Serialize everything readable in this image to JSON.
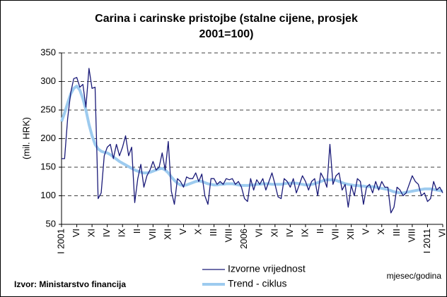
{
  "chart_data": {
    "type": "line",
    "title": "Carina i carinske pristojbe (stalne cijene, prosjek 2001=100)",
    "y_label": "(mil. HRK)",
    "x_label": "mjesec/godina",
    "source": "Izvor: Ministarstvo financija",
    "categories": [
      "I 2001",
      null,
      null,
      null,
      null,
      "VI",
      null,
      null,
      null,
      null,
      "XI",
      null,
      null,
      null,
      null,
      "IV",
      null,
      null,
      null,
      null,
      "IX",
      null,
      null,
      null,
      null,
      "II",
      null,
      null,
      null,
      null,
      "VII",
      null,
      null,
      null,
      null,
      "XII",
      null,
      null,
      null,
      null,
      "V",
      null,
      null,
      null,
      null,
      "X",
      null,
      null,
      null,
      null,
      "III",
      null,
      null,
      null,
      null,
      "VIII",
      null,
      null,
      null,
      null,
      "2006",
      null,
      null,
      null,
      null,
      "VI",
      null,
      null,
      null,
      null,
      "XI",
      null,
      null,
      null,
      null,
      "IV",
      null,
      null,
      null,
      null,
      "IX",
      null,
      null,
      null,
      null,
      "II",
      null,
      null,
      null,
      null,
      "VII",
      null,
      null,
      null,
      null,
      "XII",
      null,
      null,
      null,
      null,
      "V",
      null,
      null,
      null,
      null,
      "X",
      null,
      null,
      null,
      null,
      "III",
      null,
      null,
      null,
      null,
      "VIII",
      null,
      null,
      null,
      null,
      "I 2011",
      null,
      null,
      null,
      null,
      "VI"
    ],
    "series": [
      {
        "name": "Izvorne vrijednost",
        "color": "#1a1a78",
        "width": 1.3,
        "values": [
          165,
          165,
          235,
          280,
          305,
          307,
          290,
          295,
          255,
          323,
          288,
          290,
          95,
          105,
          170,
          185,
          190,
          165,
          190,
          170,
          185,
          205,
          170,
          185,
          88,
          130,
          155,
          115,
          135,
          145,
          160,
          145,
          150,
          175,
          145,
          195,
          108,
          85,
          130,
          125,
          115,
          133,
          130,
          130,
          140,
          125,
          138,
          100,
          85,
          130,
          130,
          120,
          125,
          120,
          130,
          128,
          130,
          120,
          125,
          115,
          95,
          90,
          130,
          110,
          128,
          120,
          130,
          110,
          125,
          140,
          120,
          98,
          95,
          130,
          125,
          115,
          130,
          105,
          120,
          135,
          125,
          110,
          125,
          130,
          100,
          140,
          130,
          115,
          190,
          120,
          135,
          140,
          110,
          120,
          80,
          118,
          100,
          130,
          125,
          85,
          115,
          120,
          105,
          125,
          110,
          125,
          115,
          115,
          70,
          80,
          115,
          110,
          100,
          105,
          120,
          135,
          125,
          120,
          100,
          105,
          90,
          95,
          125,
          110,
          115,
          105
        ]
      },
      {
        "name": "Trend - ciklus",
        "color": "#9dcbef",
        "width": 4,
        "values": [
          230,
          245,
          262,
          278,
          288,
          292,
          285,
          270,
          250,
          225,
          205,
          190,
          182,
          178,
          176,
          175,
          172,
          168,
          164,
          160,
          157,
          154,
          151,
          148,
          145,
          143,
          141,
          140,
          140,
          141,
          143,
          145,
          147,
          148,
          145,
          140,
          133,
          127,
          122,
          119,
          118,
          119,
          121,
          123,
          125,
          126,
          125,
          123,
          121,
          120,
          119,
          119,
          120,
          120,
          121,
          121,
          121,
          120,
          119,
          118,
          118,
          118,
          119,
          119,
          120,
          120,
          121,
          121,
          121,
          120,
          120,
          120,
          120,
          121,
          122,
          122,
          122,
          122,
          121,
          120,
          119,
          119,
          120,
          121,
          123,
          125,
          127,
          128,
          128,
          128,
          127,
          125,
          123,
          121,
          120,
          119,
          118,
          118,
          117,
          117,
          116,
          116,
          116,
          115,
          114,
          113,
          112,
          111,
          109,
          107,
          106,
          105,
          105,
          106,
          107,
          108,
          109,
          110,
          111,
          112,
          112,
          112,
          111,
          110,
          109,
          108
        ]
      }
    ],
    "ylim": [
      50,
      350
    ],
    "yticks": [
      50,
      100,
      150,
      200,
      250,
      300,
      350
    ],
    "grid": true
  }
}
